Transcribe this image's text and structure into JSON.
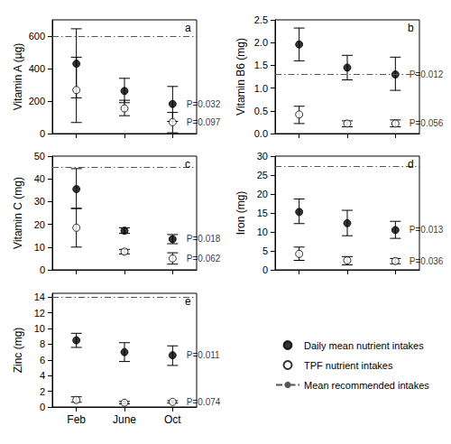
{
  "chart_data": [
    {
      "type": "scatter",
      "title": "a",
      "y_label": "Vitamin A (µg)",
      "categories": [
        "Feb",
        "June",
        "Oct"
      ],
      "ylim": [
        0,
        700
      ],
      "yticks": [
        0,
        200,
        400,
        600
      ],
      "grid": false,
      "tick_labels": "y",
      "series": [
        {
          "name": "Daily mean nutrient intakes",
          "color": "#000000",
          "marker": "filled_circle",
          "values": [
            430,
            262,
            182
          ],
          "lower": [
            220,
            190,
            75
          ],
          "upper": [
            645,
            340,
            290
          ],
          "annotation": "P=0.032"
        },
        {
          "name": "TPF nutrient intakes",
          "color": "#000000",
          "marker": "open_circle",
          "values": [
            268,
            155,
            70
          ],
          "lower": [
            68,
            110,
            5
          ],
          "upper": [
            470,
            205,
            130
          ],
          "annotation": "P=0.097"
        }
      ],
      "reference": {
        "name": "Mean recommended intakes",
        "value": 600,
        "color": "#555555",
        "line_style": "dashdot"
      }
    },
    {
      "type": "scatter",
      "title": "b",
      "y_label": "Vitamin B6 (mg)",
      "categories": [
        "Feb",
        "June",
        "Oct"
      ],
      "ylim": [
        0,
        2.5
      ],
      "yticks": [
        {
          "value": 0,
          "label": "0.0"
        },
        0.5,
        {
          "value": 1,
          "label": "1.0"
        },
        1.5,
        {
          "value": 2,
          "label": "2.0"
        },
        2.5
      ],
      "grid": false,
      "tick_labels": "y",
      "series": [
        {
          "name": "Daily mean nutrient intakes",
          "color": "#000000",
          "marker": "filled_circle",
          "values": [
            1.96,
            1.45,
            1.3
          ],
          "lower": [
            1.6,
            1.18,
            0.95
          ],
          "upper": [
            2.32,
            1.72,
            1.68
          ],
          "annotation": "P=0.012"
        },
        {
          "name": "TPF nutrient intakes",
          "color": "#000000",
          "marker": "open_circle",
          "values": [
            0.42,
            0.22,
            0.22
          ],
          "lower": [
            0.22,
            0.15,
            0.15
          ],
          "upper": [
            0.6,
            0.28,
            0.3
          ],
          "annotation": "P=0.056"
        }
      ],
      "reference": {
        "name": "Mean recommended intakes",
        "value": 1.3,
        "color": "#555555",
        "line_style": "dashdot"
      }
    },
    {
      "type": "scatter",
      "title": "c",
      "y_label": "Vitamin C (mg)",
      "categories": [
        "Feb",
        "June",
        "Oct"
      ],
      "ylim": [
        0,
        50
      ],
      "yticks": [
        0,
        10,
        20,
        30,
        40,
        50
      ],
      "grid": false,
      "tick_labels": "y",
      "series": [
        {
          "name": "Daily mean nutrient intakes",
          "color": "#000000",
          "marker": "filled_circle",
          "values": [
            35.5,
            17.2,
            13.5
          ],
          "lower": [
            27,
            16,
            11.5
          ],
          "upper": [
            44.5,
            18.5,
            15.5
          ],
          "annotation": "P=0.018"
        },
        {
          "name": "TPF nutrient intakes",
          "color": "#000000",
          "marker": "open_circle",
          "values": [
            18.5,
            8,
            5
          ],
          "lower": [
            10,
            7,
            2.5
          ],
          "upper": [
            27,
            9,
            7.5
          ],
          "annotation": "P=0.062"
        }
      ],
      "reference": {
        "name": "Mean recommended intakes",
        "value": 45,
        "color": "#555555",
        "line_style": "dashdot"
      }
    },
    {
      "type": "scatter",
      "title": "d",
      "y_label": "Iron (mg)",
      "categories": [
        "Feb",
        "June",
        "Oct"
      ],
      "ylim": [
        0,
        30
      ],
      "yticks": [
        0,
        5,
        10,
        15,
        20,
        25,
        30
      ],
      "grid": false,
      "tick_labels": "y",
      "series": [
        {
          "name": "Daily mean nutrient intakes",
          "color": "#000000",
          "marker": "filled_circle",
          "values": [
            15.3,
            12.3,
            10.5
          ],
          "lower": [
            12.2,
            9,
            8.3
          ],
          "upper": [
            18.7,
            15.7,
            12.8
          ],
          "annotation": "P=0.013"
        },
        {
          "name": "TPF nutrient intakes",
          "color": "#000000",
          "marker": "open_circle",
          "values": [
            4.2,
            2.5,
            2.3
          ],
          "lower": [
            2.5,
            1.3,
            1.6
          ],
          "upper": [
            6,
            3.5,
            3
          ],
          "annotation": "P=0.036"
        }
      ],
      "reference": {
        "name": "Mean recommended intakes",
        "value": 27.3,
        "color": "#555555",
        "line_style": "dashdot"
      }
    },
    {
      "type": "scatter",
      "title": "e",
      "y_label": "Zinc (mg)",
      "categories": [
        "Feb",
        "June",
        "Oct"
      ],
      "ylim": [
        0,
        14.5
      ],
      "yticks": [
        0,
        2,
        4,
        6,
        8,
        10,
        12,
        14
      ],
      "grid": false,
      "series": [
        {
          "name": "Daily mean nutrient intakes",
          "color": "#000000",
          "marker": "filled_circle",
          "values": [
            8.5,
            7,
            6.6
          ],
          "lower": [
            7.6,
            5.8,
            5.3
          ],
          "upper": [
            9.4,
            8.2,
            7.8
          ],
          "annotation": "P=0.011"
        },
        {
          "name": "TPF nutrient intakes",
          "color": "#000000",
          "marker": "open_circle",
          "values": [
            0.9,
            0.55,
            0.65
          ],
          "lower": [
            0.6,
            0.4,
            0.5
          ],
          "upper": [
            1.3,
            0.7,
            0.8
          ],
          "annotation": "P=0.074"
        }
      ],
      "reference": {
        "name": "Mean recommended intakes",
        "value": 14,
        "color": "#555555",
        "line_style": "dashdot"
      },
      "legend": "lower right"
    }
  ]
}
